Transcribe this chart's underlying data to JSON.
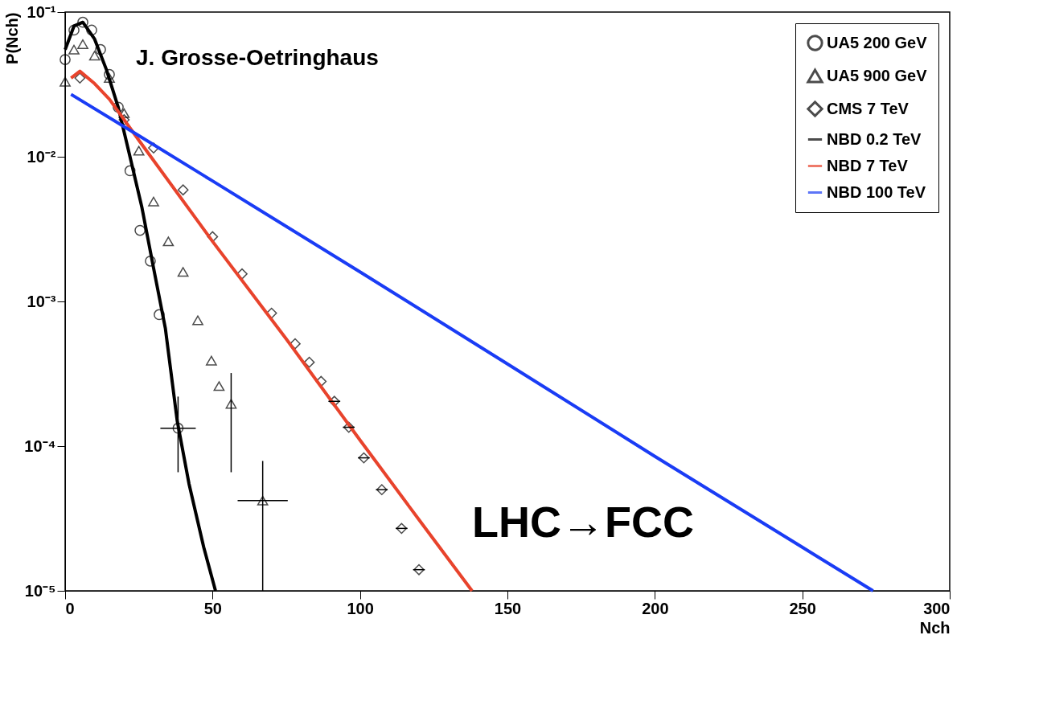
{
  "chart_data": {
    "type": "scatter",
    "xlabel": "Nch",
    "ylabel": "P(Nch)",
    "log": "y",
    "grid": false,
    "legend": "top right",
    "xlim": [
      0,
      300
    ],
    "xticks": [
      0,
      50,
      100,
      150,
      200,
      250,
      300
    ],
    "ylim": [
      1e-05,
      0.1
    ],
    "yticks": [
      {
        "value": 1e-05,
        "label": "10⁻⁵"
      },
      {
        "value": 0.0001,
        "label": "10⁻⁴"
      },
      {
        "value": 0.001,
        "label": "10⁻³"
      },
      {
        "value": 0.01,
        "label": "10⁻²"
      },
      {
        "value": 0.1,
        "label": "10⁻¹"
      }
    ],
    "annotations": [
      "J. Grosse-Oetringhaus",
      "LHC→FCC"
    ],
    "series": [
      {
        "name": "UA5 200 GeV",
        "marker": "circle",
        "color": "#000000",
        "x": [
          0,
          3,
          6,
          9,
          12,
          15,
          18,
          22,
          25.4,
          28.9,
          31.9,
          38.3
        ],
        "values": [
          0.047,
          0.075,
          0.085,
          0.075,
          0.055,
          0.037,
          0.022,
          0.008,
          0.0031,
          0.0019,
          0.00081,
          0.000133
        ],
        "errors": [
          null,
          null,
          null,
          null,
          null,
          null,
          null,
          null,
          null,
          null,
          null,
          [
            6.6e-05,
            0.00022
          ]
        ],
        "xerrors": [
          null,
          null,
          null,
          null,
          null,
          null,
          null,
          null,
          null,
          null,
          null,
          6
        ]
      },
      {
        "name": "UA5 900 GeV",
        "marker": "triangle",
        "color": "#000000",
        "x": [
          0,
          3,
          6,
          10,
          15,
          20,
          25,
          30,
          35,
          40,
          45,
          49.6,
          52.2,
          56.3,
          67
        ],
        "values": [
          0.033,
          0.055,
          0.06,
          0.05,
          0.035,
          0.02,
          0.011,
          0.0049,
          0.0026,
          0.0016,
          0.00074,
          0.00039,
          0.00026,
          0.000196,
          4.2e-05
        ],
        "errors": [
          null,
          null,
          null,
          null,
          null,
          null,
          null,
          null,
          null,
          null,
          null,
          null,
          null,
          [
            6.6e-05,
            0.00032
          ],
          [
            1e-05,
            7.9e-05
          ]
        ],
        "xerrors": [
          null,
          null,
          null,
          null,
          null,
          null,
          null,
          null,
          null,
          null,
          null,
          null,
          null,
          null,
          8.5
        ]
      },
      {
        "name": "CMS 7 TeV",
        "marker": "diamond",
        "color": "#000000",
        "x": [
          5,
          20,
          30,
          40,
          50,
          60,
          70,
          78,
          82.8,
          86.8,
          91.3,
          96.2,
          101.3,
          107.4,
          114.1,
          120
        ],
        "values": [
          0.035,
          0.018,
          0.0115,
          0.0059,
          0.0028,
          0.00155,
          0.00083,
          0.00051,
          0.00038,
          0.00028,
          0.000204,
          0.000135,
          8.3e-05,
          5e-05,
          2.7e-05,
          1.4e-05
        ],
        "errors": [
          null,
          null,
          null,
          null,
          null,
          null,
          null,
          null,
          null,
          null,
          null,
          null,
          null,
          null,
          null,
          null
        ],
        "xerrors": [
          null,
          null,
          null,
          null,
          null,
          null,
          null,
          null,
          null,
          null,
          2,
          2,
          2,
          2,
          2,
          2
        ]
      },
      {
        "name": "NBD 0.2 TeV",
        "type": "line",
        "marker": "none",
        "line_style": "solid",
        "color": "#000000",
        "x": [
          0,
          3,
          6,
          10,
          14,
          18,
          22,
          26,
          30,
          34,
          38,
          42,
          47,
          51
        ],
        "values": [
          0.055,
          0.08,
          0.085,
          0.065,
          0.04,
          0.022,
          0.01,
          0.0045,
          0.0017,
          0.00065,
          0.00015,
          5.5e-05,
          2e-05,
          1e-05
        ]
      },
      {
        "name": "NBD 7 TeV",
        "type": "line",
        "marker": "none",
        "line_style": "solid",
        "color": "#e8432c",
        "x": [
          2,
          5,
          10,
          15,
          25,
          50,
          75,
          100,
          120,
          138
        ],
        "values": [
          0.035,
          0.039,
          0.032,
          0.025,
          0.013,
          0.0026,
          0.00055,
          0.00011,
          3.1e-05,
          1e-05
        ]
      },
      {
        "name": "NBD 100 TeV",
        "type": "line",
        "marker": "none",
        "line_style": "solid",
        "color": "#1a3cf5",
        "x": [
          2,
          25,
          50,
          100,
          150,
          200,
          250,
          274
        ],
        "values": [
          0.027,
          0.014,
          0.0068,
          0.0016,
          0.00037,
          8.5e-05,
          2e-05,
          1e-05
        ]
      }
    ]
  }
}
